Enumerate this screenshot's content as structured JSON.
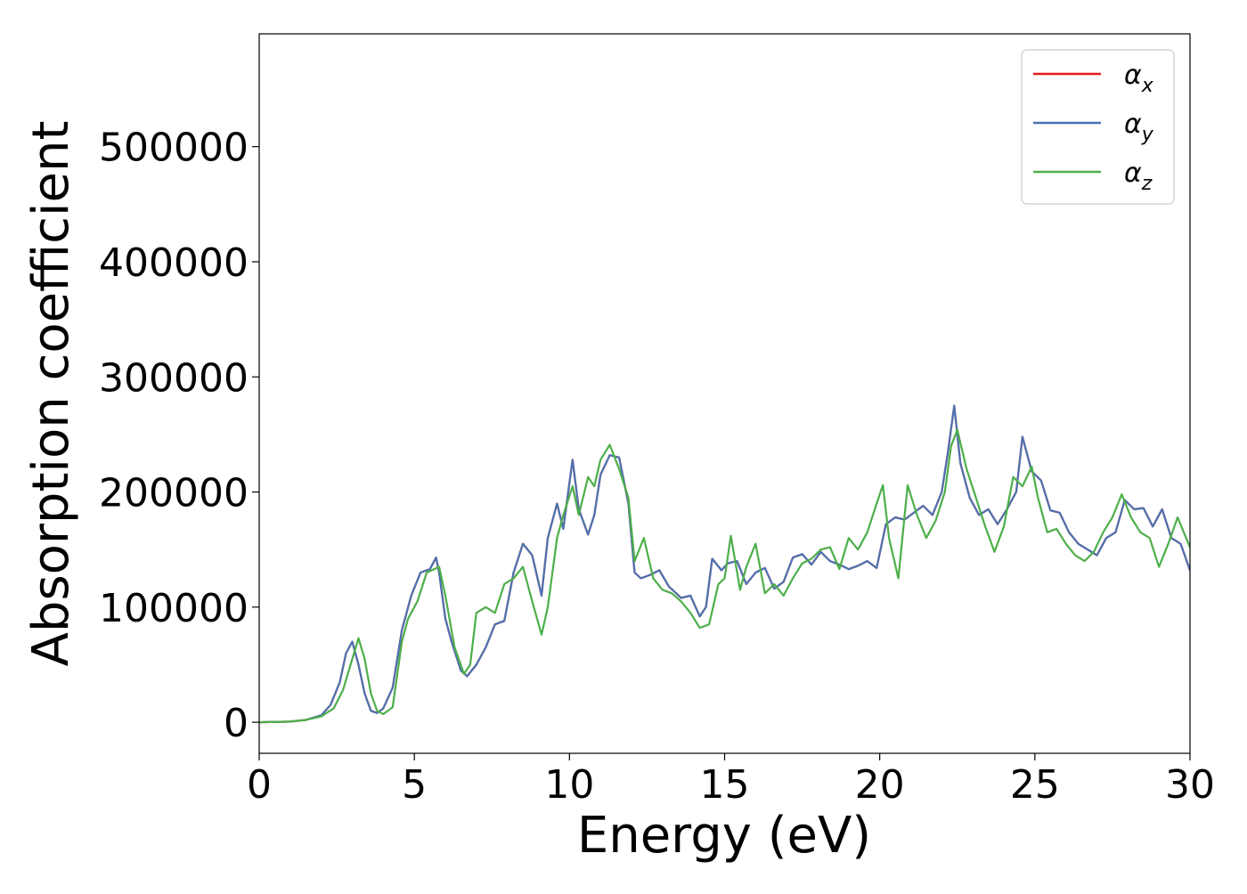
{
  "chart_data": {
    "type": "line",
    "title": "",
    "xlabel": "Energy (eV)",
    "ylabel": "Absorption coefficient",
    "xlim": [
      0,
      30
    ],
    "ylim": [
      -27000,
      598000
    ],
    "xticks": [
      0,
      5,
      10,
      15,
      20,
      25,
      30
    ],
    "yticks": [
      0,
      100000,
      200000,
      300000,
      400000,
      500000
    ],
    "grid": false,
    "legend_position": "top-right",
    "series": [
      {
        "name": "α",
        "subscript": "x",
        "color": "#e41a1c",
        "x": [
          0,
          1,
          1.5,
          2,
          2.3,
          2.6,
          2.8,
          3.0,
          3.2,
          3.4,
          3.6,
          3.8,
          4.0,
          4.3,
          4.6,
          4.9,
          5.2,
          5.5,
          5.7,
          5.8,
          6.0,
          6.2,
          6.5,
          6.7,
          7.0,
          7.3,
          7.6,
          7.9,
          8.2,
          8.5,
          8.8,
          9.1,
          9.3,
          9.6,
          9.8,
          10.1,
          10.3,
          10.6,
          10.8,
          11.0,
          11.3,
          11.6,
          11.9,
          12.1,
          12.3,
          12.6,
          12.9,
          13.2,
          13.6,
          13.9,
          14.2,
          14.4,
          14.6,
          14.9,
          15.1,
          15.4,
          15.7,
          16.0,
          16.3,
          16.6,
          16.9,
          17.2,
          17.5,
          17.8,
          18.1,
          18.4,
          18.7,
          19.0,
          19.3,
          19.6,
          19.9,
          20.2,
          20.5,
          20.8,
          21.1,
          21.4,
          21.7,
          22.0,
          22.2,
          22.4,
          22.6,
          22.9,
          23.2,
          23.5,
          23.8,
          24.1,
          24.4,
          24.6,
          24.9,
          25.2,
          25.5,
          25.8,
          26.1,
          26.4,
          26.7,
          27.0,
          27.3,
          27.6,
          27.9,
          28.2,
          28.5,
          28.8,
          29.1,
          29.4,
          29.7,
          30.0
        ],
        "values": [
          0,
          500,
          2000,
          6000,
          15000,
          35000,
          60000,
          70000,
          50000,
          25000,
          10000,
          8000,
          12000,
          30000,
          80000,
          110000,
          130000,
          133000,
          143000,
          130000,
          90000,
          70000,
          45000,
          40000,
          50000,
          65000,
          85000,
          88000,
          130000,
          155000,
          145000,
          110000,
          160000,
          190000,
          168000,
          228000,
          185000,
          163000,
          180000,
          215000,
          232000,
          230000,
          190000,
          130000,
          125000,
          128000,
          132000,
          118000,
          108000,
          110000,
          92000,
          100000,
          142000,
          132000,
          138000,
          140000,
          120000,
          130000,
          134000,
          116000,
          122000,
          143000,
          146000,
          137000,
          148000,
          140000,
          137000,
          133000,
          136000,
          140000,
          134000,
          172000,
          178000,
          176000,
          182000,
          188000,
          180000,
          200000,
          235000,
          275000,
          225000,
          195000,
          180000,
          185000,
          172000,
          185000,
          200000,
          248000,
          218000,
          210000,
          184000,
          182000,
          165000,
          155000,
          150000,
          145000,
          160000,
          165000,
          193000,
          185000,
          186000,
          170000,
          185000,
          160000,
          155000,
          132000
        ]
      },
      {
        "name": "α",
        "subscript": "y",
        "color": "#4c72b0",
        "x": [
          0,
          1,
          1.5,
          2,
          2.3,
          2.6,
          2.8,
          3.0,
          3.2,
          3.4,
          3.6,
          3.8,
          4.0,
          4.3,
          4.6,
          4.9,
          5.2,
          5.5,
          5.7,
          5.8,
          6.0,
          6.2,
          6.5,
          6.7,
          7.0,
          7.3,
          7.6,
          7.9,
          8.2,
          8.5,
          8.8,
          9.1,
          9.3,
          9.6,
          9.8,
          10.1,
          10.3,
          10.6,
          10.8,
          11.0,
          11.3,
          11.6,
          11.9,
          12.1,
          12.3,
          12.6,
          12.9,
          13.2,
          13.6,
          13.9,
          14.2,
          14.4,
          14.6,
          14.9,
          15.1,
          15.4,
          15.7,
          16.0,
          16.3,
          16.6,
          16.9,
          17.2,
          17.5,
          17.8,
          18.1,
          18.4,
          18.7,
          19.0,
          19.3,
          19.6,
          19.9,
          20.2,
          20.5,
          20.8,
          21.1,
          21.4,
          21.7,
          22.0,
          22.2,
          22.4,
          22.6,
          22.9,
          23.2,
          23.5,
          23.8,
          24.1,
          24.4,
          24.6,
          24.9,
          25.2,
          25.5,
          25.8,
          26.1,
          26.4,
          26.7,
          27.0,
          27.3,
          27.6,
          27.9,
          28.2,
          28.5,
          28.8,
          29.1,
          29.4,
          29.7,
          30.0
        ],
        "values": [
          0,
          500,
          2000,
          6000,
          15000,
          35000,
          60000,
          70000,
          50000,
          25000,
          10000,
          8000,
          12000,
          30000,
          80000,
          110000,
          130000,
          133000,
          143000,
          130000,
          90000,
          70000,
          45000,
          40000,
          50000,
          65000,
          85000,
          88000,
          130000,
          155000,
          145000,
          110000,
          160000,
          190000,
          168000,
          228000,
          185000,
          163000,
          180000,
          215000,
          232000,
          230000,
          190000,
          130000,
          125000,
          128000,
          132000,
          118000,
          108000,
          110000,
          92000,
          100000,
          142000,
          132000,
          138000,
          140000,
          120000,
          130000,
          134000,
          116000,
          122000,
          143000,
          146000,
          137000,
          148000,
          140000,
          137000,
          133000,
          136000,
          140000,
          134000,
          172000,
          178000,
          176000,
          182000,
          188000,
          180000,
          200000,
          235000,
          275000,
          225000,
          195000,
          180000,
          185000,
          172000,
          185000,
          200000,
          248000,
          218000,
          210000,
          184000,
          182000,
          165000,
          155000,
          150000,
          145000,
          160000,
          165000,
          193000,
          185000,
          186000,
          170000,
          185000,
          160000,
          155000,
          132000
        ]
      },
      {
        "name": "α",
        "subscript": "z",
        "color": "#4daf4a",
        "x": [
          0,
          1,
          1.5,
          2,
          2.4,
          2.7,
          3.0,
          3.2,
          3.4,
          3.6,
          3.8,
          4.0,
          4.3,
          4.6,
          4.8,
          5.1,
          5.4,
          5.8,
          6.0,
          6.3,
          6.6,
          6.8,
          7.0,
          7.3,
          7.6,
          7.9,
          8.2,
          8.5,
          8.8,
          9.1,
          9.3,
          9.6,
          9.8,
          10.1,
          10.3,
          10.6,
          10.8,
          11.0,
          11.3,
          11.6,
          11.9,
          12.1,
          12.4,
          12.7,
          13.0,
          13.3,
          13.6,
          13.9,
          14.2,
          14.5,
          14.8,
          15.0,
          15.2,
          15.5,
          15.7,
          16.0,
          16.3,
          16.6,
          16.9,
          17.2,
          17.5,
          17.8,
          18.1,
          18.4,
          18.7,
          19.0,
          19.3,
          19.6,
          19.9,
          20.1,
          20.3,
          20.6,
          20.9,
          21.2,
          21.5,
          21.8,
          22.1,
          22.3,
          22.5,
          22.8,
          23.1,
          23.4,
          23.7,
          24.0,
          24.3,
          24.6,
          24.9,
          25.1,
          25.4,
          25.7,
          26.0,
          26.3,
          26.6,
          26.9,
          27.2,
          27.5,
          27.8,
          28.1,
          28.4,
          28.7,
          29.0,
          29.3,
          29.6,
          29.8,
          30.0
        ],
        "values": [
          0,
          500,
          2000,
          5000,
          12000,
          28000,
          55000,
          73000,
          55000,
          25000,
          10000,
          7000,
          13000,
          70000,
          90000,
          105000,
          130000,
          135000,
          110000,
          65000,
          42000,
          50000,
          95000,
          100000,
          95000,
          120000,
          125000,
          135000,
          105000,
          76000,
          100000,
          160000,
          180000,
          205000,
          180000,
          213000,
          205000,
          228000,
          241000,
          220000,
          195000,
          140000,
          160000,
          125000,
          115000,
          112000,
          105000,
          95000,
          82000,
          85000,
          120000,
          125000,
          162000,
          115000,
          135000,
          155000,
          112000,
          120000,
          110000,
          125000,
          138000,
          142000,
          150000,
          152000,
          133000,
          160000,
          150000,
          165000,
          190000,
          206000,
          160000,
          125000,
          206000,
          180000,
          160000,
          175000,
          200000,
          240000,
          254000,
          220000,
          195000,
          170000,
          148000,
          170000,
          213000,
          205000,
          222000,
          195000,
          165000,
          168000,
          155000,
          145000,
          140000,
          148000,
          165000,
          178000,
          198000,
          178000,
          165000,
          160000,
          135000,
          155000,
          178000,
          165000,
          152000
        ]
      }
    ]
  }
}
